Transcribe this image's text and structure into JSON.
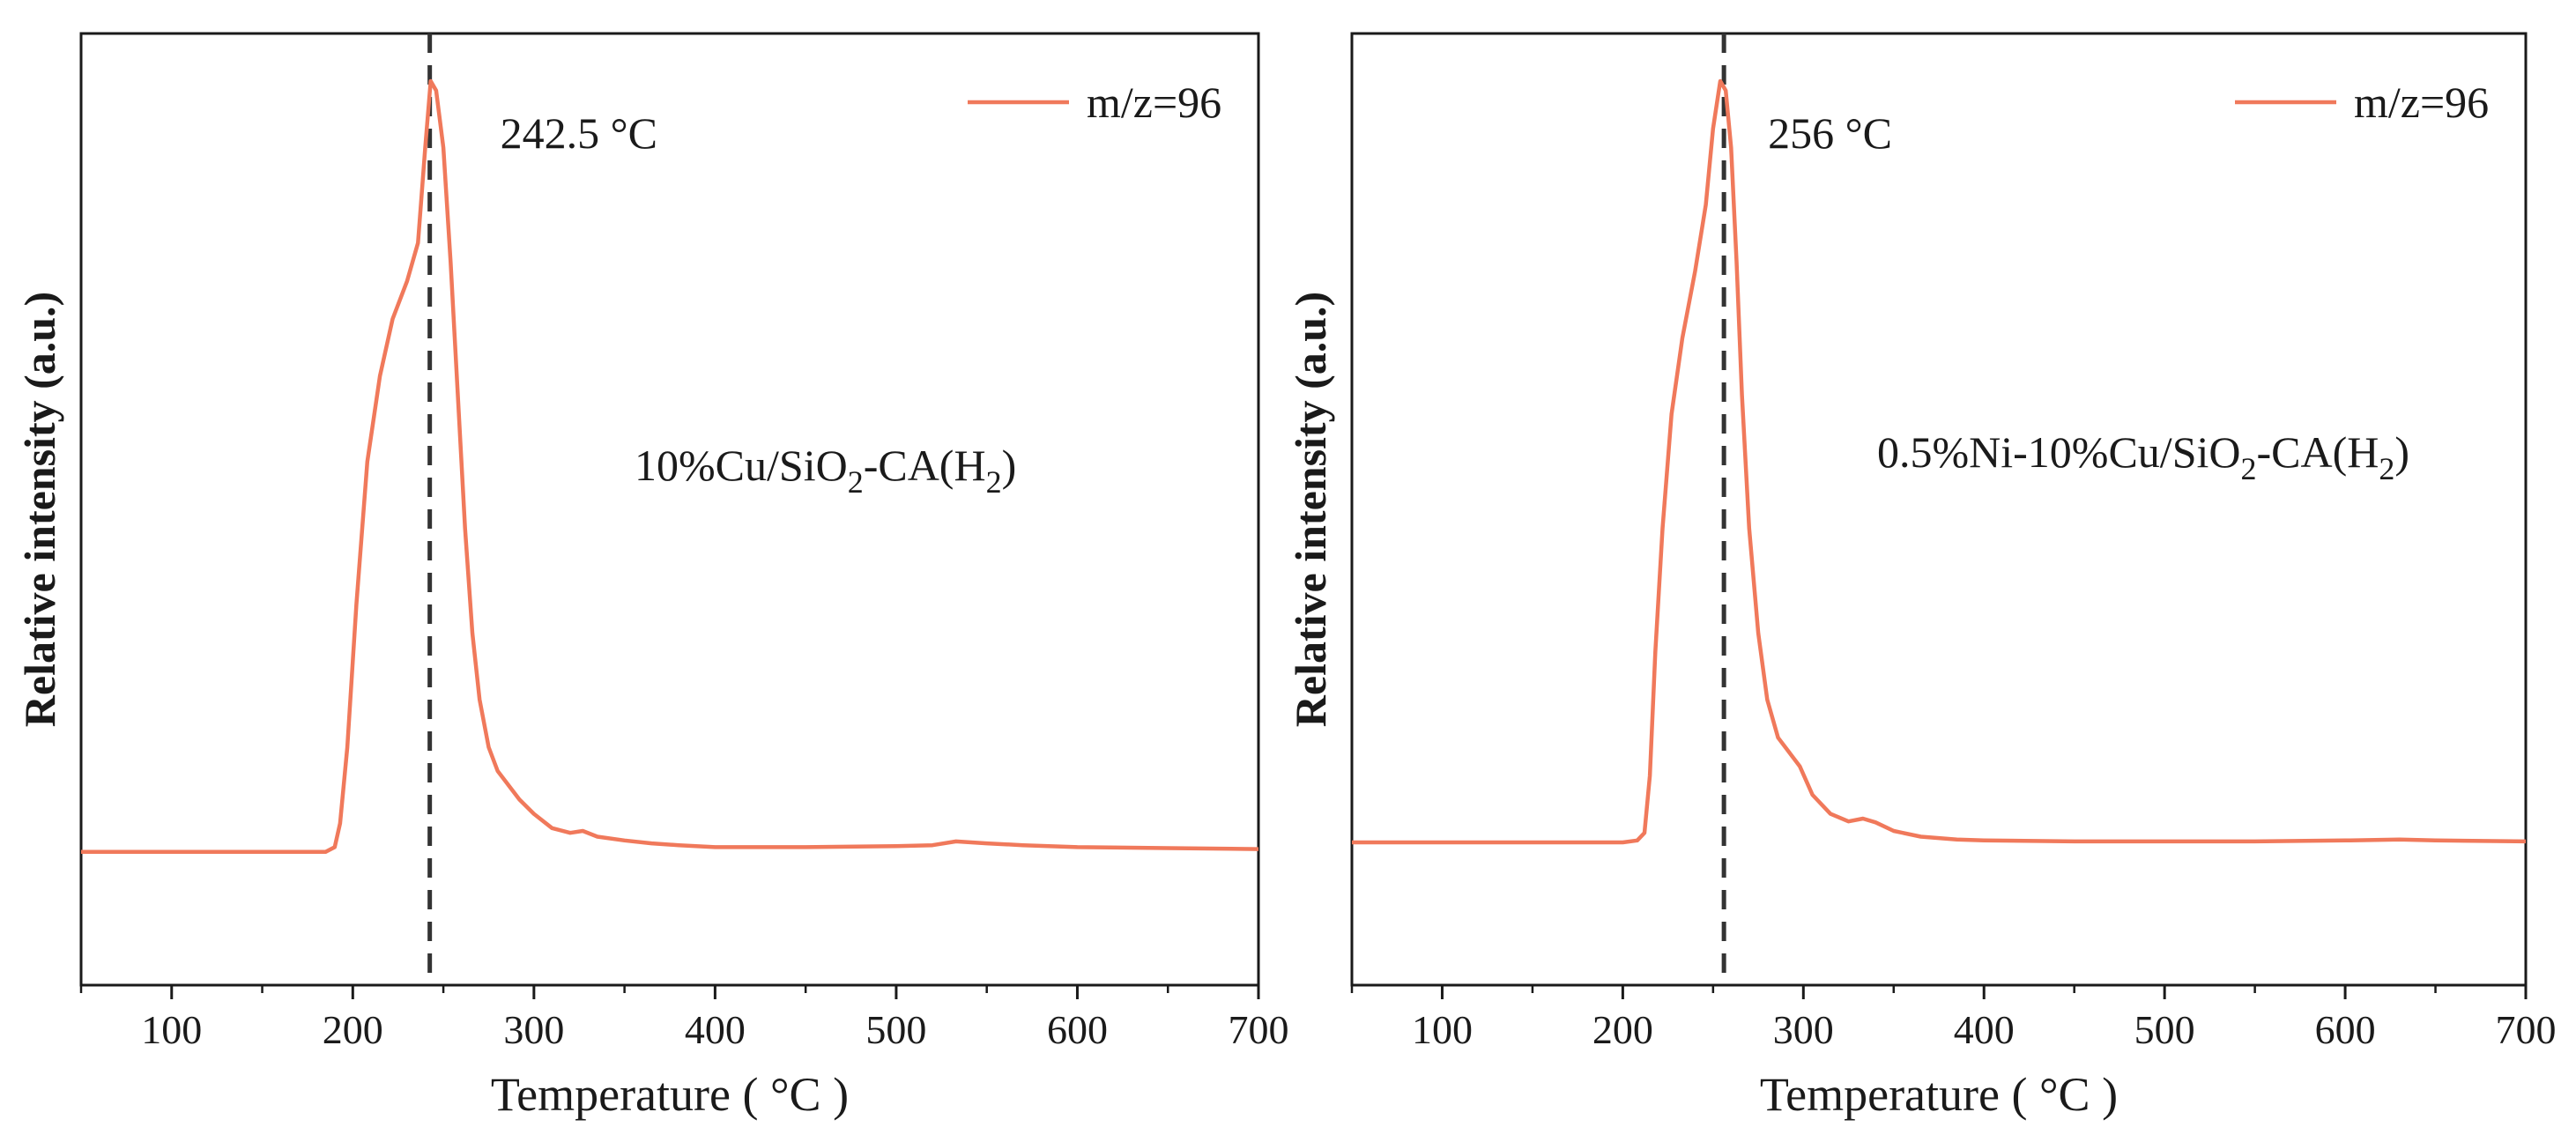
{
  "colors": {
    "series": "#F0795B",
    "axis": "#1a1a1a",
    "marker_line": "#333333",
    "background": "#ffffff"
  },
  "chart_data": [
    {
      "type": "line",
      "xlabel": "Temperature ( °C )",
      "ylabel": "Relative intensity (a.u.)",
      "xlim": [
        50,
        700
      ],
      "ylim": [
        0,
        1
      ],
      "xticks": [
        100,
        200,
        300,
        400,
        500,
        600,
        700
      ],
      "legend": {
        "label": "m/z=96",
        "position": "top-right"
      },
      "peak": {
        "x": 242.5,
        "label": "242.5 °C"
      },
      "sample": {
        "main": "10%Cu/SiO",
        "sub1": "2",
        "mid": "-CA(H",
        "sub2": "2",
        "end": ")"
      },
      "series": [
        {
          "name": "m/z=96",
          "x": [
            50,
            100,
            150,
            185,
            190,
            193,
            197,
            202,
            208,
            215,
            222,
            230,
            236,
            240,
            243,
            246,
            250,
            254,
            258,
            262,
            266,
            270,
            275,
            280,
            286,
            292,
            300,
            310,
            320,
            327,
            335,
            350,
            365,
            380,
            400,
            450,
            500,
            520,
            533,
            550,
            570,
            600,
            650,
            700
          ],
          "y": [
            0.14,
            0.14,
            0.14,
            0.14,
            0.145,
            0.17,
            0.25,
            0.4,
            0.55,
            0.64,
            0.7,
            0.74,
            0.78,
            0.88,
            0.95,
            0.94,
            0.88,
            0.76,
            0.62,
            0.48,
            0.37,
            0.3,
            0.25,
            0.225,
            0.21,
            0.195,
            0.18,
            0.165,
            0.16,
            0.162,
            0.156,
            0.152,
            0.149,
            0.147,
            0.145,
            0.145,
            0.146,
            0.147,
            0.151,
            0.149,
            0.147,
            0.145,
            0.144,
            0.143
          ]
        }
      ]
    },
    {
      "type": "line",
      "xlabel": "Temperature ( °C )",
      "ylabel": "Relative intensity (a.u.)",
      "xlim": [
        50,
        700
      ],
      "ylim": [
        0,
        1
      ],
      "xticks": [
        100,
        200,
        300,
        400,
        500,
        600,
        700
      ],
      "legend": {
        "label": "m/z=96",
        "position": "top-right"
      },
      "peak": {
        "x": 256,
        "label": "256 °C"
      },
      "sample": {
        "main": "0.5%Ni-10%Cu/SiO",
        "sub1": "2",
        "mid": "-CA(H",
        "sub2": "2",
        "end": ")"
      },
      "series": [
        {
          "name": "m/z=96",
          "x": [
            50,
            100,
            150,
            200,
            208,
            212,
            215,
            218,
            222,
            227,
            233,
            240,
            246,
            250,
            254,
            257,
            260,
            263,
            266,
            270,
            275,
            280,
            286,
            292,
            298,
            305,
            315,
            325,
            333,
            340,
            350,
            365,
            385,
            400,
            450,
            500,
            550,
            600,
            630,
            650,
            700
          ],
          "y": [
            0.15,
            0.15,
            0.15,
            0.15,
            0.152,
            0.16,
            0.22,
            0.35,
            0.48,
            0.6,
            0.68,
            0.75,
            0.82,
            0.9,
            0.95,
            0.94,
            0.88,
            0.76,
            0.62,
            0.48,
            0.37,
            0.3,
            0.26,
            0.245,
            0.23,
            0.2,
            0.18,
            0.172,
            0.175,
            0.171,
            0.162,
            0.156,
            0.153,
            0.152,
            0.151,
            0.151,
            0.151,
            0.152,
            0.153,
            0.152,
            0.151
          ]
        }
      ]
    }
  ]
}
